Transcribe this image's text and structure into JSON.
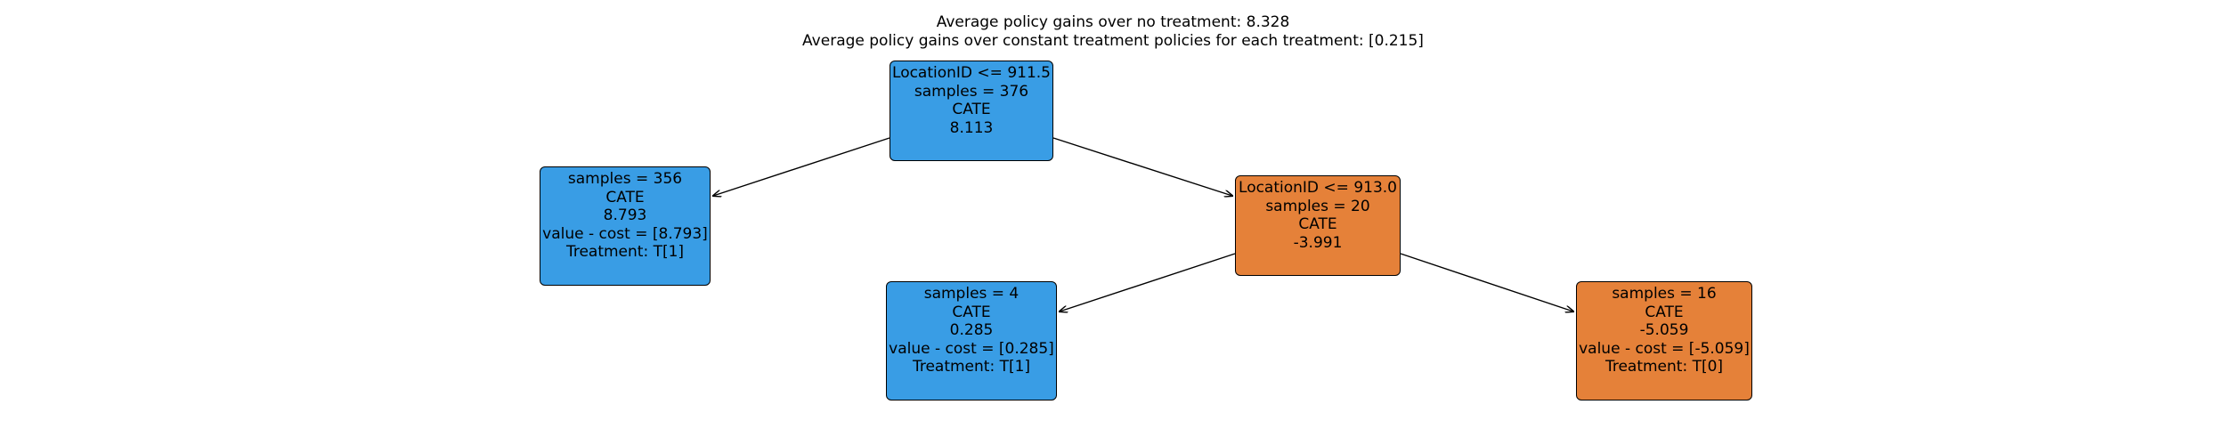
{
  "title": {
    "line1": "Average policy gains over no treatment: 8.328",
    "line2": "Average policy gains over constant treatment policies for each treatment: [0.215]"
  },
  "colors": {
    "treat_1": "#399de5",
    "treat_0": "#e58139",
    "edge": "#000000"
  },
  "tree": {
    "root": {
      "split": "LocationID <= 911.5",
      "samples": "samples = 376",
      "cate_label": "CATE",
      "cate_value": "8.113"
    },
    "left_leaf": {
      "samples": "samples = 356",
      "cate_label": "CATE",
      "cate_value": "8.793",
      "value_cost": "value - cost = [8.793]",
      "treatment": "Treatment: T[1]"
    },
    "right": {
      "split": "LocationID <= 913.0",
      "samples": "samples = 20",
      "cate_label": "CATE",
      "cate_value": "-3.991"
    },
    "right_left_leaf": {
      "samples": "samples = 4",
      "cate_label": "CATE",
      "cate_value": "0.285",
      "value_cost": "value - cost = [0.285]",
      "treatment": "Treatment: T[1]"
    },
    "right_right_leaf": {
      "samples": "samples = 16",
      "cate_label": "CATE",
      "cate_value": "-5.059",
      "value_cost": "value - cost = [-5.059]",
      "treatment": "Treatment: T[0]"
    }
  }
}
